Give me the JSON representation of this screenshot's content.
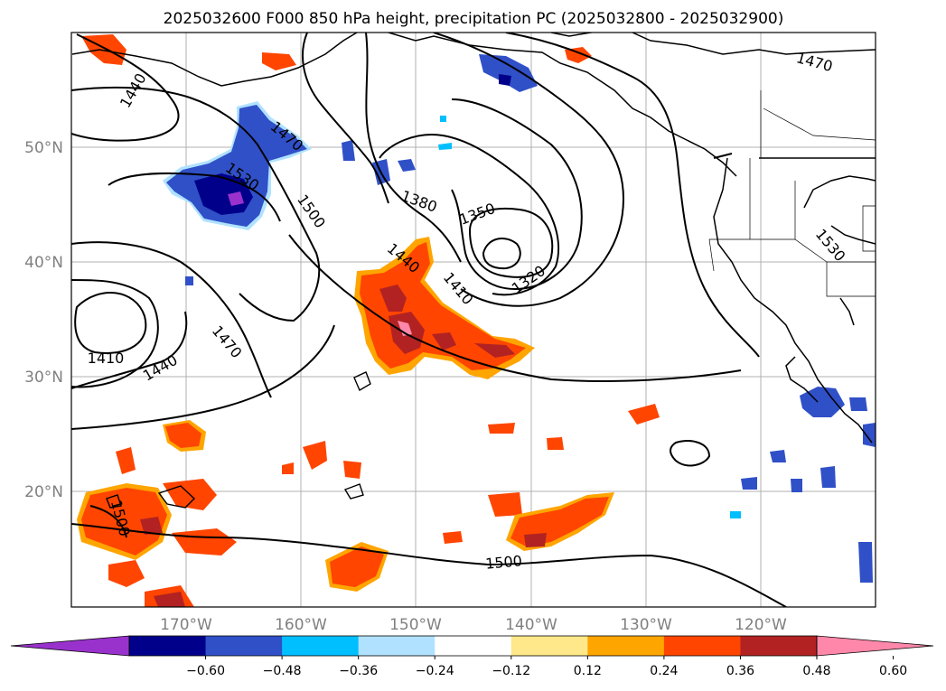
{
  "title": "2025032600 F000 850 hPa height, precipitation PC (2025032800 - 2025032900)",
  "map": {
    "latitude_labels": [
      "50°N",
      "40°N",
      "30°N",
      "20°N"
    ],
    "longitude_labels": [
      "170°W",
      "160°W",
      "150°W",
      "140°W",
      "130°W",
      "120°W"
    ],
    "contour_labels": [
      "1440",
      "1470",
      "1530",
      "1500",
      "1380",
      "1350",
      "1440",
      "1410",
      "1320",
      "1470",
      "1410",
      "1440",
      "1470",
      "1500",
      "1530",
      "1500"
    ]
  },
  "colorbar": {
    "ticks": [
      "−0.60",
      "−0.48",
      "−0.36",
      "−0.24",
      "−0.12",
      "0.12",
      "0.24",
      "0.36",
      "0.48",
      "0.60"
    ],
    "colors": [
      "#9932cc",
      "#00008b",
      "#3050c8",
      "#00bfff",
      "#b0e2ff",
      "#ffffff",
      "#ffe88a",
      "#ffa500",
      "#ff4500",
      "#b22222",
      "#ff88aa"
    ]
  }
}
